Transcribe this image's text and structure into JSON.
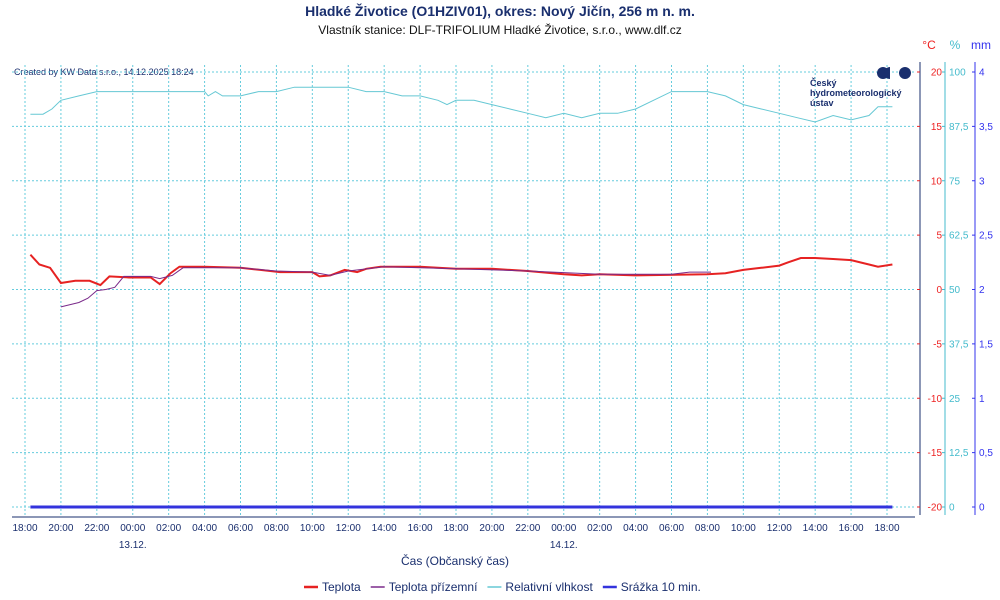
{
  "chart_data": {
    "type": "line",
    "title": "Hladké Životice (O1HZIV01), okres: Nový Jičín, 256 m n. m.",
    "subtitle": "Vlastník stanice: DLF-TRIFOLIUM Hladké Životice, s.r.o., www.dlf.cz",
    "credit": "Created by KW Data s.r.o., 14.12.2025 18:24",
    "logo_text": [
      "Český",
      "hydrometeorologický",
      "ústav"
    ],
    "xlabel": "Čas (Občanský čas)",
    "x_unit": "hours since 12.12. 18:00",
    "xlim": [
      0,
      48
    ],
    "x_tick_labels": [
      "18:00",
      "20:00",
      "22:00",
      "00:00",
      "02:00",
      "04:00",
      "06:00",
      "08:00",
      "10:00",
      "12:00",
      "14:00",
      "16:00",
      "18:00",
      "20:00",
      "22:00",
      "00:00",
      "02:00",
      "04:00",
      "06:00",
      "08:00",
      "10:00",
      "12:00",
      "14:00",
      "16:00",
      "18:00"
    ],
    "date_labels": [
      {
        "h": 6,
        "label": "13.12."
      },
      {
        "h": 30,
        "label": "14.12."
      }
    ],
    "axes": [
      {
        "unit": "°C",
        "color": "#ee2222",
        "ylim": [
          -20,
          20
        ],
        "ticks": [
          "20",
          "15",
          "10",
          "5",
          "0",
          "-5",
          "-10",
          "-15",
          "-20"
        ]
      },
      {
        "unit": "%",
        "color": "#44bbcc",
        "ylim": [
          0,
          100
        ],
        "ticks": [
          "100",
          "87,5",
          "75",
          "62,5",
          "50",
          "37,5",
          "25",
          "12,5",
          "0"
        ]
      },
      {
        "unit": "mm",
        "color": "#3333ee",
        "ylim": [
          0,
          4
        ],
        "ticks": [
          "4",
          "3,5",
          "3",
          "2,5",
          "2",
          "1,5",
          "1",
          "0,5",
          "0"
        ]
      }
    ],
    "grid": true,
    "legend_position": "bottom",
    "series": [
      {
        "name": "Teplota",
        "axis": 0,
        "color": "#e62222",
        "width": 2,
        "points": [
          [
            0.3,
            3.2
          ],
          [
            0.8,
            2.3
          ],
          [
            1.4,
            2.0
          ],
          [
            2.0,
            0.6
          ],
          [
            2.8,
            0.8
          ],
          [
            3.6,
            0.8
          ],
          [
            4.2,
            0.4
          ],
          [
            4.7,
            1.2
          ],
          [
            5.8,
            1.1
          ],
          [
            7,
            1.1
          ],
          [
            7.5,
            0.5
          ],
          [
            8.1,
            1.5
          ],
          [
            8.6,
            2.1
          ],
          [
            10,
            2.1
          ],
          [
            12,
            2.0
          ],
          [
            13.1,
            1.8
          ],
          [
            14.2,
            1.6
          ],
          [
            16,
            1.6
          ],
          [
            16.4,
            1.2
          ],
          [
            17,
            1.3
          ],
          [
            17.8,
            1.8
          ],
          [
            18.5,
            1.6
          ],
          [
            19,
            1.9
          ],
          [
            19.8,
            2.1
          ],
          [
            22,
            2.1
          ],
          [
            24,
            1.9
          ],
          [
            26,
            1.9
          ],
          [
            28,
            1.7
          ],
          [
            30,
            1.4
          ],
          [
            31,
            1.3
          ],
          [
            32,
            1.4
          ],
          [
            34,
            1.3
          ],
          [
            38,
            1.4
          ],
          [
            39,
            1.5
          ],
          [
            40,
            1.8
          ],
          [
            41,
            2.0
          ],
          [
            42,
            2.2
          ],
          [
            42.5,
            2.5
          ],
          [
            43.2,
            2.9
          ],
          [
            44,
            2.9
          ],
          [
            45,
            2.8
          ],
          [
            46,
            2.7
          ],
          [
            47,
            2.3
          ],
          [
            47.5,
            2.1
          ],
          [
            48.3,
            2.3
          ]
        ]
      },
      {
        "name": "Teplota přízemní",
        "axis": 0,
        "color": "#7a2a8a",
        "width": 1,
        "points": [
          [
            2,
            -1.6
          ],
          [
            3,
            -1.2
          ],
          [
            3.5,
            -0.8
          ],
          [
            4,
            -0.1
          ],
          [
            4.5,
            0.0
          ],
          [
            5,
            0.2
          ],
          [
            5.5,
            1.2
          ],
          [
            7,
            1.2
          ],
          [
            7.5,
            1.0
          ],
          [
            8.2,
            1.3
          ],
          [
            8.8,
            2.0
          ],
          [
            12,
            2.0
          ],
          [
            14,
            1.7
          ],
          [
            16,
            1.6
          ],
          [
            17,
            1.3
          ],
          [
            18,
            1.7
          ],
          [
            20,
            2.1
          ],
          [
            24,
            1.9
          ],
          [
            28,
            1.7
          ],
          [
            32,
            1.4
          ],
          [
            36,
            1.4
          ],
          [
            37,
            1.6
          ],
          [
            38.2,
            1.6
          ]
        ]
      },
      {
        "name": "Relativní vlhkost",
        "axis": 1,
        "color": "#66c8d4",
        "width": 1,
        "points": [
          [
            0.3,
            90.3
          ],
          [
            1,
            90.3
          ],
          [
            1.5,
            91.5
          ],
          [
            2,
            93.5
          ],
          [
            3,
            94.5
          ],
          [
            4,
            95.5
          ],
          [
            10,
            95.5
          ],
          [
            10.2,
            94.5
          ],
          [
            10.6,
            95.5
          ],
          [
            11,
            94.5
          ],
          [
            12,
            94.5
          ],
          [
            13,
            95.5
          ],
          [
            14,
            95.5
          ],
          [
            15,
            96.5
          ],
          [
            18,
            96.5
          ],
          [
            19,
            95.5
          ],
          [
            20,
            95.5
          ],
          [
            21,
            94.5
          ],
          [
            22,
            94.5
          ],
          [
            23,
            93.5
          ],
          [
            23.5,
            92.5
          ],
          [
            24,
            93.5
          ],
          [
            25,
            93.5
          ],
          [
            26,
            92.5
          ],
          [
            27,
            91.5
          ],
          [
            28,
            90.5
          ],
          [
            29,
            89.5
          ],
          [
            30,
            90.5
          ],
          [
            31,
            89.5
          ],
          [
            32,
            90.5
          ],
          [
            33,
            90.5
          ],
          [
            34,
            91.5
          ],
          [
            35,
            93.5
          ],
          [
            36,
            95.5
          ],
          [
            38,
            95.5
          ],
          [
            39,
            94.5
          ],
          [
            40,
            92.5
          ],
          [
            41,
            91.5
          ],
          [
            42,
            90.5
          ],
          [
            43,
            89.5
          ],
          [
            44,
            88.5
          ],
          [
            45,
            90
          ],
          [
            46,
            89
          ],
          [
            47,
            90
          ],
          [
            47.5,
            92
          ],
          [
            48.3,
            92
          ]
        ]
      },
      {
        "name": "Srážka 10 min.",
        "axis": 2,
        "color": "#3333dd",
        "width": 3,
        "points": [
          [
            0.3,
            0
          ],
          [
            48.3,
            0
          ]
        ]
      }
    ]
  }
}
